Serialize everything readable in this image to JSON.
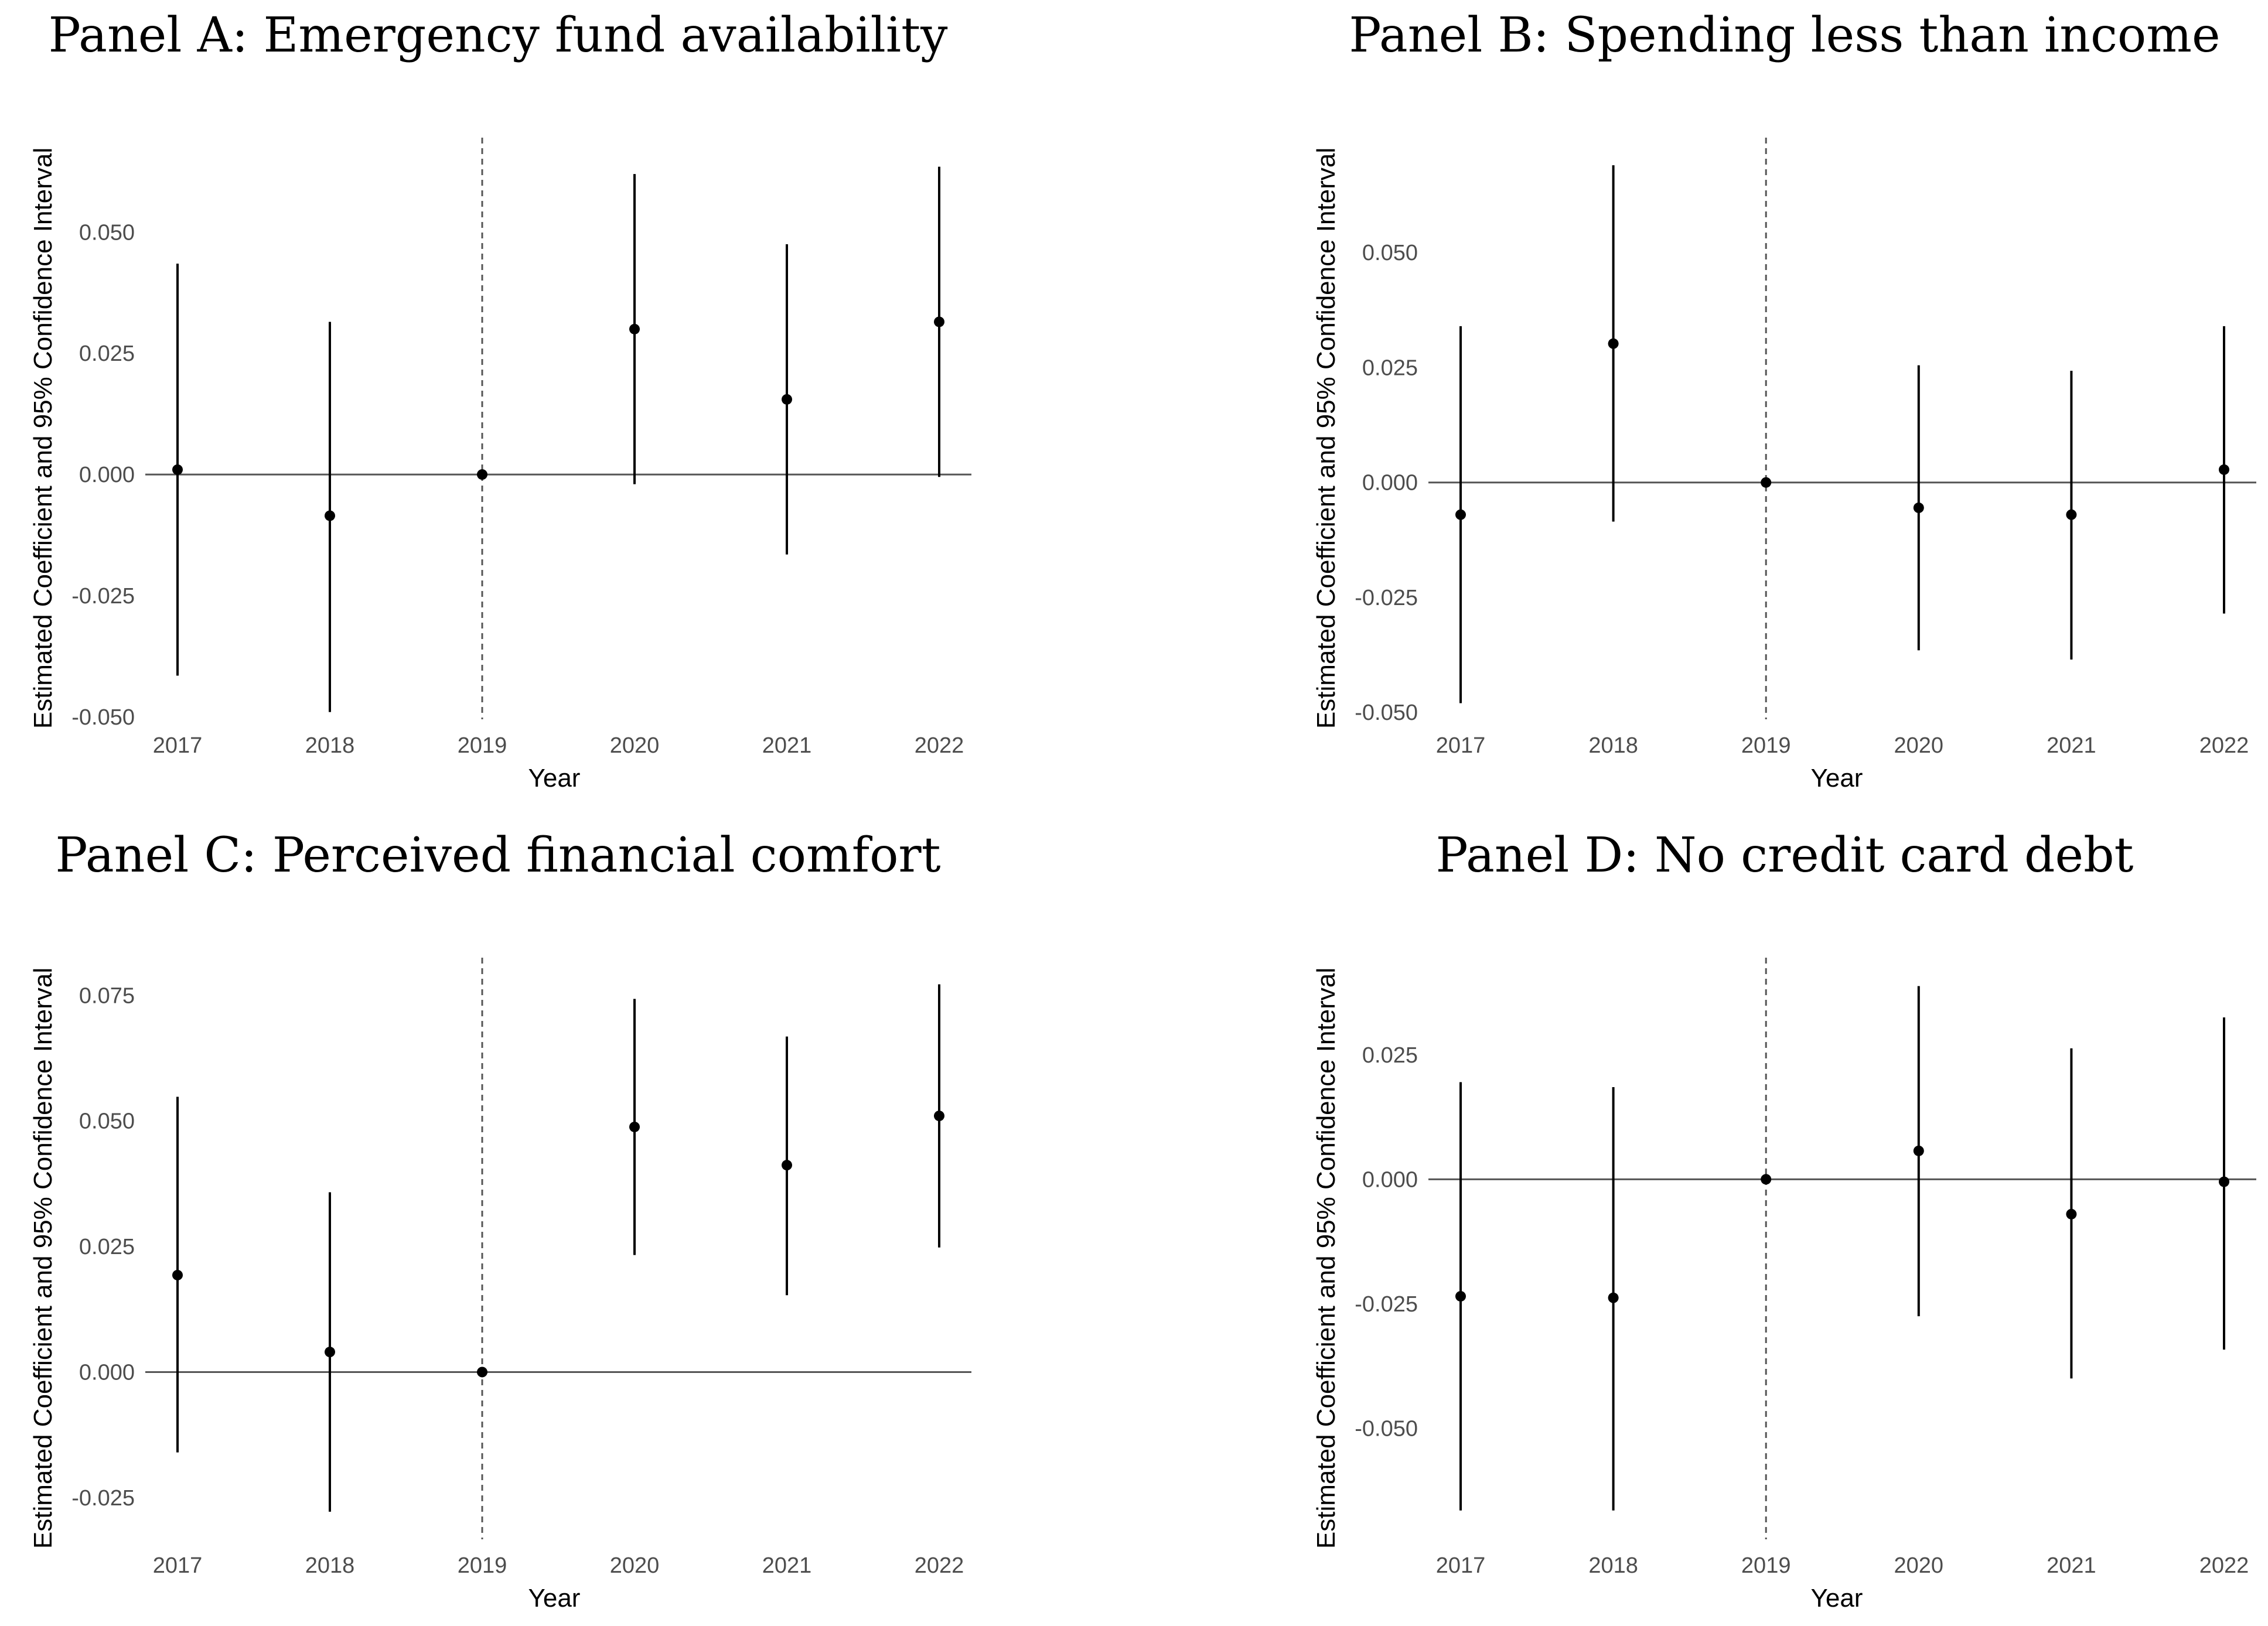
{
  "chart_data": [
    {
      "type": "scatter",
      "subtype": "coefficient-plot-with-95ci",
      "title": "Panel A: Emergency fund availability",
      "xlabel": "Year",
      "ylabel": "Estimated Coefficient and 95% Confidence Interval",
      "categories": [
        "2017",
        "2018",
        "2019",
        "2020",
        "2021",
        "2022"
      ],
      "reference_category": "2019",
      "estimates": [
        0.001,
        -0.0085,
        0.0,
        0.03,
        0.0155,
        0.0315
      ],
      "ci_lower": [
        -0.0415,
        -0.049,
        0.0,
        -0.002,
        -0.0165,
        -0.0005
      ],
      "ci_upper": [
        0.0435,
        0.0315,
        0.0,
        0.062,
        0.0475,
        0.0635
      ],
      "yticks": [
        -0.05,
        -0.025,
        0.0,
        0.025,
        0.05
      ],
      "ytick_labels": [
        "-0.050",
        "-0.025",
        "0.000",
        "0.025",
        "0.050"
      ],
      "ylim": [
        -0.0505,
        0.0695
      ],
      "grid": false
    },
    {
      "type": "scatter",
      "subtype": "coefficient-plot-with-95ci",
      "title": "Panel B: Spending less than income",
      "xlabel": "Year",
      "ylabel": "Estimated Coefficient and 95% Confidence Interval",
      "categories": [
        "2017",
        "2018",
        "2019",
        "2020",
        "2021",
        "2022"
      ],
      "reference_category": "2019",
      "estimates": [
        -0.007,
        0.0302,
        0.0,
        -0.0055,
        -0.007,
        0.0028
      ],
      "ci_lower": [
        -0.048,
        -0.0085,
        0.0,
        -0.0365,
        -0.0385,
        -0.0285
      ],
      "ci_upper": [
        0.034,
        0.069,
        0.0,
        0.0255,
        0.0243,
        0.034
      ],
      "yticks": [
        -0.05,
        -0.025,
        0.0,
        0.025,
        0.05
      ],
      "ytick_labels": [
        "-0.050",
        "-0.025",
        "0.000",
        "0.025",
        "0.050"
      ],
      "ylim": [
        -0.0515,
        0.075
      ],
      "grid": false
    },
    {
      "type": "scatter",
      "subtype": "coefficient-plot-with-95ci",
      "title": "Panel C: Perceived financial comfort",
      "xlabel": "Year",
      "ylabel": "Estimated Coefficient and 95% Confidence Interval",
      "categories": [
        "2017",
        "2018",
        "2019",
        "2020",
        "2021",
        "2022"
      ],
      "reference_category": "2019",
      "estimates": [
        0.0193,
        0.004,
        0.0,
        0.0488,
        0.0412,
        0.051
      ],
      "ci_lower": [
        -0.016,
        -0.0278,
        0.0,
        0.0233,
        0.0153,
        0.0248
      ],
      "ci_upper": [
        0.0548,
        0.0358,
        0.0,
        0.0743,
        0.0668,
        0.0772
      ],
      "yticks": [
        -0.025,
        0.0,
        0.025,
        0.05,
        0.075
      ],
      "ytick_labels": [
        "-0.025",
        "0.000",
        "0.025",
        "0.050",
        "0.075"
      ],
      "ylim": [
        -0.0333,
        0.0825
      ],
      "grid": false
    },
    {
      "type": "scatter",
      "subtype": "coefficient-plot-with-95ci",
      "title": "Panel D: No credit card debt",
      "xlabel": "Year",
      "ylabel": "Estimated Coefficient and 95% Confidence Interval",
      "categories": [
        "2017",
        "2018",
        "2019",
        "2020",
        "2021",
        "2022"
      ],
      "reference_category": "2019",
      "estimates": [
        -0.0235,
        -0.0238,
        0.0,
        0.0057,
        -0.007,
        -0.0005
      ],
      "ci_lower": [
        -0.0665,
        -0.0665,
        0.0,
        -0.0275,
        -0.04,
        -0.0342
      ],
      "ci_upper": [
        0.0195,
        0.0185,
        0.0,
        0.0388,
        0.0263,
        0.0325
      ],
      "yticks": [
        -0.05,
        -0.025,
        0.0,
        0.025
      ],
      "ytick_labels": [
        "-0.050",
        "-0.025",
        "0.000",
        "0.025"
      ],
      "ylim": [
        -0.0723,
        0.0445
      ],
      "grid": false
    }
  ]
}
